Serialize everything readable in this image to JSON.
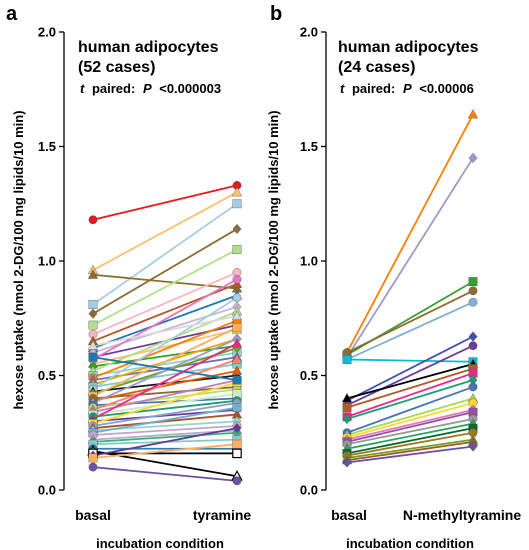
{
  "chart_data": [
    {
      "type": "line",
      "panel": "a",
      "title_line1": "human adipocytes",
      "title_line2": "(52 cases)",
      "stat_prefix": "t",
      "stat_paired": "paired:",
      "stat_p": "P",
      "stat_value": "<0.000003",
      "categories": [
        "basal",
        "tyramine"
      ],
      "xlabel": "incubation condition",
      "ylabel": "hexose uptake (nmol 2-DG/100 mg lipids/10 min)",
      "ylim": [
        0,
        2.0
      ],
      "yticks": [
        "0.0",
        "0.5",
        "1.0",
        "1.5",
        "2.0"
      ],
      "ytick_values": [
        0,
        0.5,
        1.0,
        1.5,
        2.0
      ],
      "grid": false,
      "series": [
        {
          "values": [
            1.18,
            1.33
          ],
          "color": "#e41a1c",
          "marker": "circle"
        },
        {
          "values": [
            0.81,
            1.25
          ],
          "color": "#a6cee3",
          "marker": "square"
        },
        {
          "values": [
            0.96,
            1.3
          ],
          "color": "#fdbf6f",
          "marker": "triangle"
        },
        {
          "values": [
            0.94,
            0.88
          ],
          "color": "#8c6d31",
          "marker": "triangle"
        },
        {
          "values": [
            0.77,
            1.14
          ],
          "color": "#8c6d31",
          "marker": "diamond"
        },
        {
          "values": [
            0.72,
            1.05
          ],
          "color": "#b2df8a",
          "marker": "square"
        },
        {
          "values": [
            0.68,
            0.95
          ],
          "color": "#fbb4c4",
          "marker": "circle"
        },
        {
          "values": [
            0.65,
            0.9
          ],
          "color": "#b15928",
          "marker": "triangle"
        },
        {
          "values": [
            0.62,
            0.85
          ],
          "color": "#1f78b4",
          "marker": "triangle"
        },
        {
          "values": [
            0.6,
            0.8
          ],
          "color": "#cab2d6",
          "marker": "diamond"
        },
        {
          "values": [
            0.58,
            0.72
          ],
          "color": "#6a3d9a",
          "marker": "square"
        },
        {
          "values": [
            0.57,
            0.92
          ],
          "color": "#e377c2",
          "marker": "circle"
        },
        {
          "values": [
            0.55,
            0.7
          ],
          "color": "#fdbf6f",
          "marker": "triangle"
        },
        {
          "values": [
            0.54,
            0.63
          ],
          "color": "#33a02c",
          "marker": "diamond"
        },
        {
          "values": [
            0.52,
            0.78
          ],
          "color": "#b2df8a",
          "marker": "triangle"
        },
        {
          "values": [
            0.5,
            0.6
          ],
          "color": "#8dd3c7",
          "marker": "square"
        },
        {
          "values": [
            0.49,
            0.74
          ],
          "color": "#ff7f00",
          "marker": "circle"
        },
        {
          "values": [
            0.48,
            0.58
          ],
          "color": "#7570b3",
          "marker": "triangle"
        },
        {
          "values": [
            0.46,
            0.66
          ],
          "color": "#e6ab02",
          "marker": "diamond"
        },
        {
          "values": [
            0.45,
            0.55
          ],
          "color": "#80cdc1",
          "marker": "square"
        },
        {
          "values": [
            0.44,
            0.84
          ],
          "color": "#a6cee3",
          "marker": "circle"
        },
        {
          "values": [
            0.43,
            0.5
          ],
          "color": "#1a1a1a",
          "marker": "triangle"
        },
        {
          "values": [
            0.42,
            0.62
          ],
          "color": "#66a61e",
          "marker": "diamond"
        },
        {
          "values": [
            0.41,
            0.71
          ],
          "color": "#fdae61",
          "marker": "square"
        },
        {
          "values": [
            0.4,
            0.45
          ],
          "color": "#8c6d31",
          "marker": "circle"
        },
        {
          "values": [
            0.39,
            0.52
          ],
          "color": "#d95f02",
          "marker": "triangle"
        },
        {
          "values": [
            0.38,
            0.66
          ],
          "color": "#9e9ac8",
          "marker": "diamond"
        },
        {
          "values": [
            0.37,
            0.4
          ],
          "color": "#4575b4",
          "marker": "square"
        },
        {
          "values": [
            0.36,
            0.44
          ],
          "color": "#b3de69",
          "marker": "circle"
        },
        {
          "values": [
            0.35,
            0.57
          ],
          "color": "#fb8072",
          "marker": "triangle"
        },
        {
          "values": [
            0.34,
            0.48
          ],
          "color": "#bc80bd",
          "marker": "diamond"
        },
        {
          "values": [
            0.33,
            0.42
          ],
          "color": "#ccebc5",
          "marker": "square"
        },
        {
          "values": [
            0.32,
            0.39
          ],
          "color": "#1b9e77",
          "marker": "circle"
        },
        {
          "values": [
            0.31,
            0.64
          ],
          "color": "#e7298a",
          "marker": "triangle"
        },
        {
          "values": [
            0.3,
            0.35
          ],
          "color": "#6a3d9a",
          "marker": "diamond"
        },
        {
          "values": [
            0.29,
            0.47
          ],
          "color": "#ffd92f",
          "marker": "square"
        },
        {
          "values": [
            0.28,
            0.38
          ],
          "color": "#8da0cb",
          "marker": "circle"
        },
        {
          "values": [
            0.27,
            0.33
          ],
          "color": "#a65628",
          "marker": "triangle"
        },
        {
          "values": [
            0.26,
            0.3
          ],
          "color": "#99d8c9",
          "marker": "diamond"
        },
        {
          "values": [
            0.25,
            0.36
          ],
          "color": "#74add1",
          "marker": "square"
        },
        {
          "values": [
            0.24,
            0.28
          ],
          "color": "#c2a5cf",
          "marker": "circle"
        },
        {
          "values": [
            0.22,
            0.26
          ],
          "color": "#b2abd2",
          "marker": "triangle"
        },
        {
          "values": [
            0.21,
            0.25
          ],
          "color": "#41ae76",
          "marker": "diamond"
        },
        {
          "values": [
            0.2,
            0.22
          ],
          "color": "#80cdc1",
          "marker": "square"
        },
        {
          "values": [
            0.18,
            0.18
          ],
          "color": "#2c7fb8",
          "marker": "circle"
        },
        {
          "values": [
            0.17,
            0.06
          ],
          "color": "#000000",
          "marker": "triangle-open"
        },
        {
          "values": [
            0.16,
            0.16
          ],
          "color": "#000000",
          "marker": "square-open"
        },
        {
          "values": [
            0.15,
            0.27
          ],
          "color": "#5e3c99",
          "marker": "diamond"
        },
        {
          "values": [
            0.14,
            0.2
          ],
          "color": "#fdae61",
          "marker": "square"
        },
        {
          "values": [
            0.1,
            0.04
          ],
          "color": "#6a51a3",
          "marker": "circle"
        },
        {
          "values": [
            0.58,
            0.48
          ],
          "color": "#1f78b4",
          "marker": "square"
        },
        {
          "values": [
            0.63,
            0.76
          ],
          "color": "#d9d9d9",
          "marker": "triangle"
        }
      ]
    },
    {
      "type": "line",
      "panel": "b",
      "title_line1": "human adipocytes",
      "title_line2": "(24 cases)",
      "stat_prefix": "t",
      "stat_paired": "paired:",
      "stat_p": "P",
      "stat_value": "<0.00006",
      "categories": [
        "basal",
        "N-methyltyramine"
      ],
      "xlabel": "incubation condition",
      "ylabel": "hexose uptake (nmol 2-DG/100 mg lipids/10 min)",
      "ylim": [
        0,
        2.0
      ],
      "yticks": [
        "0.0",
        "0.5",
        "1.0",
        "1.5",
        "2.0"
      ],
      "ytick_values": [
        0,
        0.5,
        1.0,
        1.5,
        2.0
      ],
      "grid": false,
      "series": [
        {
          "values": [
            0.6,
            1.64
          ],
          "color": "#ff7f00",
          "marker": "triangle"
        },
        {
          "values": [
            0.58,
            1.45
          ],
          "color": "#9e9ac8",
          "marker": "diamond"
        },
        {
          "values": [
            0.59,
            0.91
          ],
          "color": "#33a02c",
          "marker": "square"
        },
        {
          "values": [
            0.6,
            0.87
          ],
          "color": "#8c6d31",
          "marker": "circle"
        },
        {
          "values": [
            0.57,
            0.82
          ],
          "color": "#80b1d3",
          "marker": "circle"
        },
        {
          "values": [
            0.57,
            0.56
          ],
          "color": "#00bcd4",
          "marker": "square"
        },
        {
          "values": [
            0.39,
            0.67
          ],
          "color": "#3f51b5",
          "marker": "diamond"
        },
        {
          "values": [
            0.37,
            0.63
          ],
          "color": "#6a3d9a",
          "marker": "circle"
        },
        {
          "values": [
            0.4,
            0.55
          ],
          "color": "#000000",
          "marker": "triangle"
        },
        {
          "values": [
            0.36,
            0.53
          ],
          "color": "#b15928",
          "marker": "square"
        },
        {
          "values": [
            0.32,
            0.51
          ],
          "color": "#e7298a",
          "marker": "square"
        },
        {
          "values": [
            0.31,
            0.48
          ],
          "color": "#1b9e77",
          "marker": "diamond"
        },
        {
          "values": [
            0.25,
            0.45
          ],
          "color": "#4575b4",
          "marker": "circle"
        },
        {
          "values": [
            0.24,
            0.4
          ],
          "color": "#a6d854",
          "marker": "triangle"
        },
        {
          "values": [
            0.23,
            0.38
          ],
          "color": "#ffd92f",
          "marker": "circle"
        },
        {
          "values": [
            0.22,
            0.35
          ],
          "color": "#e377c2",
          "marker": "diamond"
        },
        {
          "values": [
            0.21,
            0.34
          ],
          "color": "#984ea3",
          "marker": "square"
        },
        {
          "values": [
            0.2,
            0.31
          ],
          "color": "#999999",
          "marker": "circle"
        },
        {
          "values": [
            0.18,
            0.29
          ],
          "color": "#2ca25f",
          "marker": "triangle"
        },
        {
          "values": [
            0.16,
            0.27
          ],
          "color": "#006d2c",
          "marker": "square"
        },
        {
          "values": [
            0.15,
            0.25
          ],
          "color": "#a6761d",
          "marker": "circle"
        },
        {
          "values": [
            0.14,
            0.22
          ],
          "color": "#66a61e",
          "marker": "triangle"
        },
        {
          "values": [
            0.13,
            0.21
          ],
          "color": "#a65628",
          "marker": "triangle"
        },
        {
          "values": [
            0.12,
            0.19
          ],
          "color": "#6a51a3",
          "marker": "diamond"
        }
      ]
    }
  ]
}
